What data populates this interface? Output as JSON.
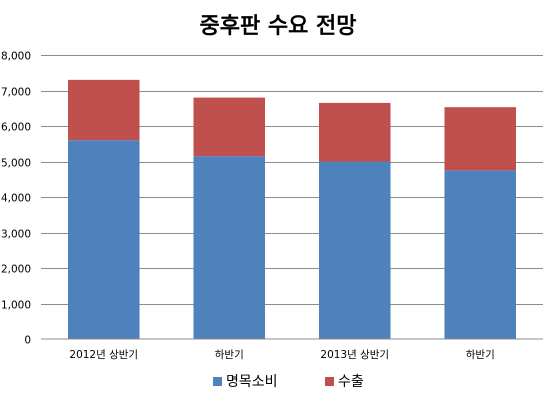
{
  "chart_data": {
    "type": "bar",
    "stacked": true,
    "title": "중후판 수요 전망",
    "xlabel": "",
    "ylabel": "",
    "categories": [
      "2012년 상반기",
      "하반기",
      "2013년 상반기",
      "하반기"
    ],
    "series": [
      {
        "name": "명목소비",
        "color": "#4F81BD",
        "values": [
          5600,
          5150,
          5000,
          4750
        ]
      },
      {
        "name": "수출",
        "color": "#C0504D",
        "values": [
          1700,
          1650,
          1650,
          1780
        ]
      }
    ],
    "ylim": [
      0,
      8000
    ],
    "yticks": [
      "0",
      "1,000",
      "2,000",
      "3,000",
      "4,000",
      "5,000",
      "6,000",
      "7,000",
      "8,000"
    ],
    "grid": true,
    "legend_position": "bottom"
  }
}
